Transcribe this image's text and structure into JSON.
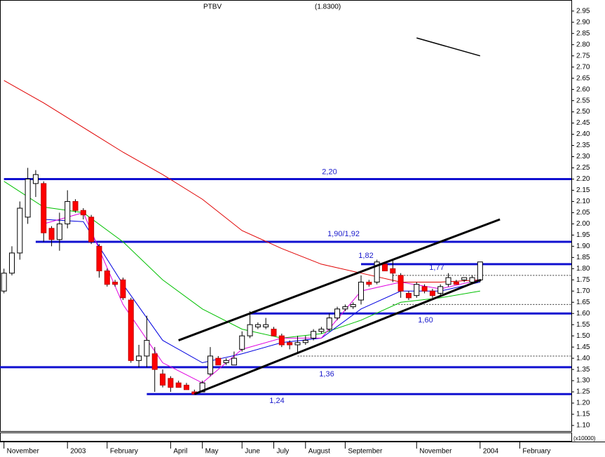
{
  "chart_data": {
    "type": "candlestick",
    "title": "PTBV",
    "last_value_label": "(1.8300)",
    "volume_label": "(x10000)",
    "xlim": [
      -0.5,
      71.5
    ],
    "ylim": [
      1.075,
      2.99
    ],
    "xticks": [
      {
        "value": 0,
        "label": "November"
      },
      {
        "value": 8,
        "label": "2003"
      },
      {
        "value": 13,
        "label": "February"
      },
      {
        "value": 21,
        "label": "April"
      },
      {
        "value": 25,
        "label": "May"
      },
      {
        "value": 30,
        "label": "June"
      },
      {
        "value": 34,
        "label": "July"
      },
      {
        "value": 38,
        "label": "August"
      },
      {
        "value": 43,
        "label": "September"
      },
      {
        "value": 52,
        "label": "November"
      },
      {
        "value": 60,
        "label": "2004"
      },
      {
        "value": 65,
        "label": "February"
      }
    ],
    "yticks": [
      2.95,
      {
        "value": 2.9,
        "label": "2.90"
      },
      2.85,
      {
        "value": 2.8,
        "label": "2.80"
      },
      2.75,
      {
        "value": 2.7,
        "label": "2.70"
      },
      2.65,
      {
        "value": 2.6,
        "label": "2.60"
      },
      2.55,
      {
        "value": 2.5,
        "label": "2.50"
      },
      2.45,
      {
        "value": 2.4,
        "label": "2.40"
      },
      2.35,
      {
        "value": 2.3,
        "label": "2.30"
      },
      2.25,
      {
        "value": 2.2,
        "label": "2.20"
      },
      2.15,
      {
        "value": 2.1,
        "label": "2.10"
      },
      2.05,
      {
        "value": 2,
        "label": "2.00"
      },
      1.95,
      {
        "value": 1.9,
        "label": "1.90"
      },
      1.85,
      {
        "value": 1.8,
        "label": "1.80"
      },
      1.75,
      {
        "value": 1.7,
        "label": "1.70"
      },
      1.65,
      {
        "value": 1.6,
        "label": "1.60"
      },
      1.55,
      {
        "value": 1.5,
        "label": "1.50"
      },
      1.45,
      {
        "value": 1.4,
        "label": "1.40"
      },
      1.35,
      {
        "value": 1.3,
        "label": "1.30"
      },
      1.25,
      {
        "value": 1.2,
        "label": "1.20"
      },
      1.15,
      {
        "value": 1.1,
        "label": "1.10"
      }
    ],
    "up_color": "#ffffff",
    "down_color": "#ff0000",
    "open": [
      1.7,
      1.78,
      1.87,
      2.03,
      2.18,
      2.18,
      1.98,
      1.93,
      2.0,
      2.1,
      2.06,
      2.03,
      1.9,
      1.79,
      1.74,
      1.75,
      1.66,
      1.39,
      1.41,
      1.42,
      1.33,
      1.31,
      1.29,
      1.28,
      1.25,
      1.25,
      1.33,
      1.4,
      1.38,
      1.37,
      1.44,
      1.5,
      1.54,
      1.54,
      1.53,
      1.5,
      1.47,
      1.46,
      1.47,
      1.49,
      1.52,
      1.53,
      1.58,
      1.62,
      1.63,
      1.66,
      1.74,
      1.74,
      1.82,
      1.8,
      1.77,
      1.69,
      1.68,
      1.72,
      1.7,
      1.69,
      1.73,
      1.74,
      1.75,
      1.74,
      1.75
    ],
    "high": [
      1.8,
      1.9,
      2.1,
      2.25,
      2.24,
      2.19,
      1.99,
      2.05,
      2.15,
      2.11,
      2.07,
      2.04,
      1.91,
      1.8,
      1.75,
      1.76,
      1.67,
      1.46,
      1.59,
      1.45,
      1.35,
      1.32,
      1.3,
      1.29,
      1.26,
      1.3,
      1.45,
      1.41,
      1.4,
      1.43,
      1.52,
      1.61,
      1.56,
      1.58,
      1.54,
      1.51,
      1.48,
      1.5,
      1.5,
      1.53,
      1.54,
      1.6,
      1.63,
      1.64,
      1.65,
      1.77,
      1.75,
      1.84,
      1.83,
      1.84,
      1.78,
      1.7,
      1.74,
      1.73,
      1.71,
      1.73,
      1.78,
      1.75,
      1.76,
      1.77,
      1.83
    ],
    "low": [
      1.69,
      1.77,
      1.84,
      2.0,
      2.12,
      1.92,
      1.9,
      1.88,
      1.98,
      2.05,
      2.02,
      1.91,
      1.76,
      1.72,
      1.72,
      1.66,
      1.38,
      1.36,
      1.36,
      1.25,
      1.27,
      1.25,
      1.27,
      1.26,
      1.24,
      1.25,
      1.32,
      1.37,
      1.37,
      1.37,
      1.43,
      1.49,
      1.53,
      1.53,
      1.5,
      1.45,
      1.44,
      1.42,
      1.46,
      1.48,
      1.51,
      1.52,
      1.57,
      1.61,
      1.62,
      1.64,
      1.72,
      1.73,
      1.79,
      1.74,
      1.67,
      1.66,
      1.67,
      1.69,
      1.67,
      1.68,
      1.72,
      1.73,
      1.74,
      1.73,
      1.74
    ],
    "close": [
      1.78,
      1.87,
      2.07,
      2.2,
      2.22,
      1.96,
      1.93,
      2.0,
      2.1,
      2.06,
      2.04,
      1.92,
      1.79,
      1.73,
      1.73,
      1.67,
      1.39,
      1.41,
      1.48,
      1.35,
      1.28,
      1.27,
      1.27,
      1.26,
      1.24,
      1.29,
      1.41,
      1.37,
      1.39,
      1.4,
      1.5,
      1.55,
      1.55,
      1.55,
      1.5,
      1.46,
      1.46,
      1.47,
      1.48,
      1.52,
      1.53,
      1.58,
      1.62,
      1.63,
      1.64,
      1.74,
      1.73,
      1.83,
      1.79,
      1.78,
      1.7,
      1.67,
      1.73,
      1.7,
      1.68,
      1.72,
      1.76,
      1.73,
      1.76,
      1.76,
      1.83
    ],
    "ma_x": [
      0,
      5,
      10,
      15,
      20,
      25,
      30,
      35,
      40,
      45,
      50,
      55,
      60
    ],
    "series": [
      {
        "color": "#e00000",
        "values": [
          2.64,
          2.54,
          2.43,
          2.32,
          2.22,
          2.11,
          1.97,
          1.89,
          1.82,
          1.78,
          1.74,
          1.74,
          1.75
        ]
      },
      {
        "color": "#00c000",
        "values": [
          2.19,
          2.075,
          2.05,
          1.92,
          1.75,
          1.62,
          1.53,
          1.49,
          1.51,
          1.57,
          1.65,
          1.67,
          1.7
        ]
      },
      {
        "color": "#0000e0",
        "values": [
          null,
          2.02,
          2.01,
          1.73,
          1.48,
          1.38,
          1.42,
          1.47,
          1.49,
          1.62,
          1.7,
          1.7,
          1.74
        ]
      },
      {
        "color": "#e000e0",
        "values": [
          null,
          2.0,
          2.05,
          1.64,
          1.38,
          1.29,
          1.44,
          1.49,
          1.49,
          1.7,
          1.74,
          1.71,
          1.75
        ]
      }
    ],
    "hlines": [
      {
        "value": 2.2,
        "from": 0,
        "style": "solid",
        "label": "2,20"
      },
      {
        "value": 1.92,
        "from": 4,
        "style": "solid",
        "label": "1,90/1,92"
      },
      {
        "value": 1.82,
        "from": 45,
        "style": "solid",
        "label": "1,82"
      },
      {
        "value": 1.77,
        "from": 49,
        "style": "dashed",
        "label": "1,77"
      },
      {
        "value": 1.64,
        "from": 49,
        "style": "dashed"
      },
      {
        "value": 1.6,
        "from": 31,
        "style": "solid",
        "label": "1,60"
      },
      {
        "value": 1.41,
        "from": 37,
        "style": "dashed"
      },
      {
        "value": 1.36,
        "from": -0.5,
        "style": "solid",
        "label": "1,36"
      },
      {
        "value": 1.24,
        "from": 18,
        "style": "solid",
        "label": "1,24"
      }
    ],
    "hline_color": "#1010d0",
    "trendlines": [
      {
        "x": [
          22,
          62.5
        ],
        "y": [
          1.48,
          2.02
        ]
      },
      {
        "x": [
          24,
          60.1
        ],
        "y": [
          1.24,
          1.75
        ]
      },
      {
        "x": [
          52,
          60
        ],
        "y": [
          2.83,
          2.75
        ]
      }
    ]
  }
}
